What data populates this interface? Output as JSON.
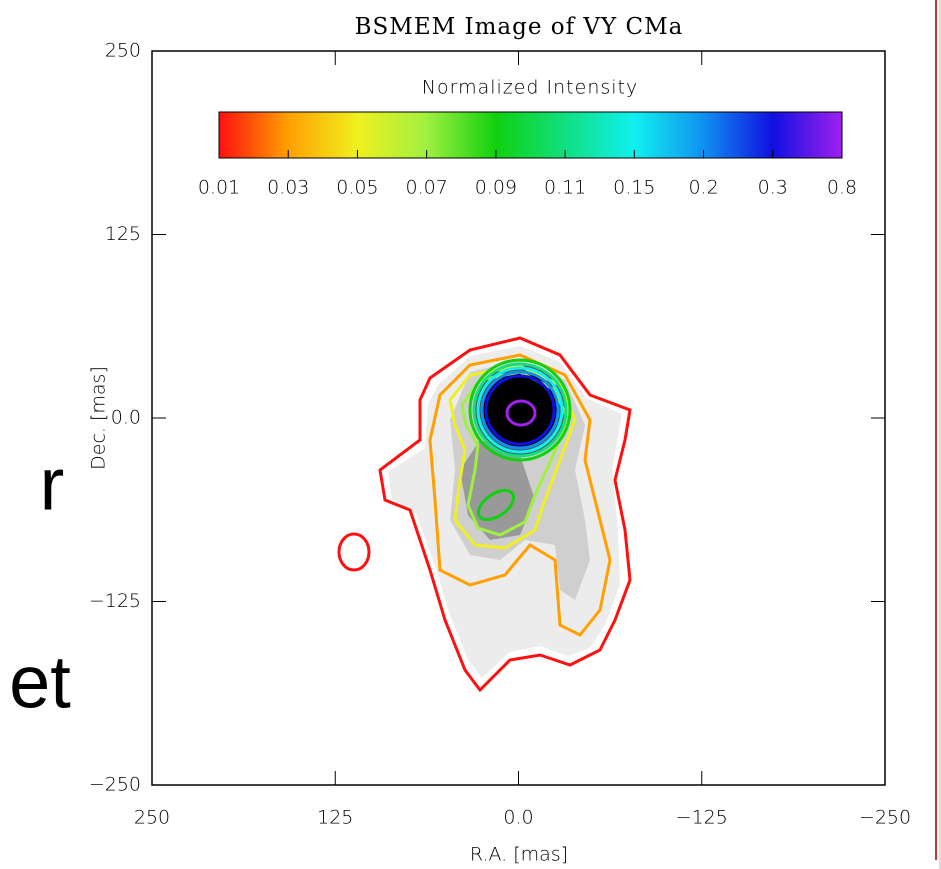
{
  "chart_data": {
    "type": "contour",
    "title": "BSMEM Image of VY CMa",
    "x_label": "R.A. [mas]",
    "y_label": "Dec. [mas]",
    "xlim": [
      250,
      -250
    ],
    "ylim": [
      -250,
      250
    ],
    "xticks": [
      250,
      125,
      {
        "value": 0,
        "label": "0.0"
      },
      {
        "value": -125,
        "label": "−125"
      },
      {
        "value": -250,
        "label": "−250"
      }
    ],
    "yticks": [
      {
        "value": -250,
        "label": "−250"
      },
      {
        "value": -125,
        "label": "−125"
      },
      {
        "value": 0,
        "label": "0.0"
      },
      125,
      250
    ],
    "colorbar": {
      "title": "Normalized Intensity",
      "levels": [
        {
          "value": 0.01,
          "color": "#ff1010"
        },
        {
          "value": 0.03,
          "color": "#ffa000"
        },
        {
          "value": 0.05,
          "color": "#f0f020"
        },
        {
          "value": 0.07,
          "color": "#a0f040"
        },
        {
          "value": 0.09,
          "color": "#10d010"
        },
        {
          "value": 0.11,
          "color": "#10e080"
        },
        {
          "value": 0.15,
          "color": "#10f0f0"
        },
        {
          "value": 0.2,
          "color": "#1090f0"
        },
        {
          "value": 0.3,
          "color": "#1010e0"
        },
        {
          "value": 0.8,
          "color": "#a020f0"
        }
      ]
    },
    "background_text": [
      "r",
      "et"
    ]
  }
}
